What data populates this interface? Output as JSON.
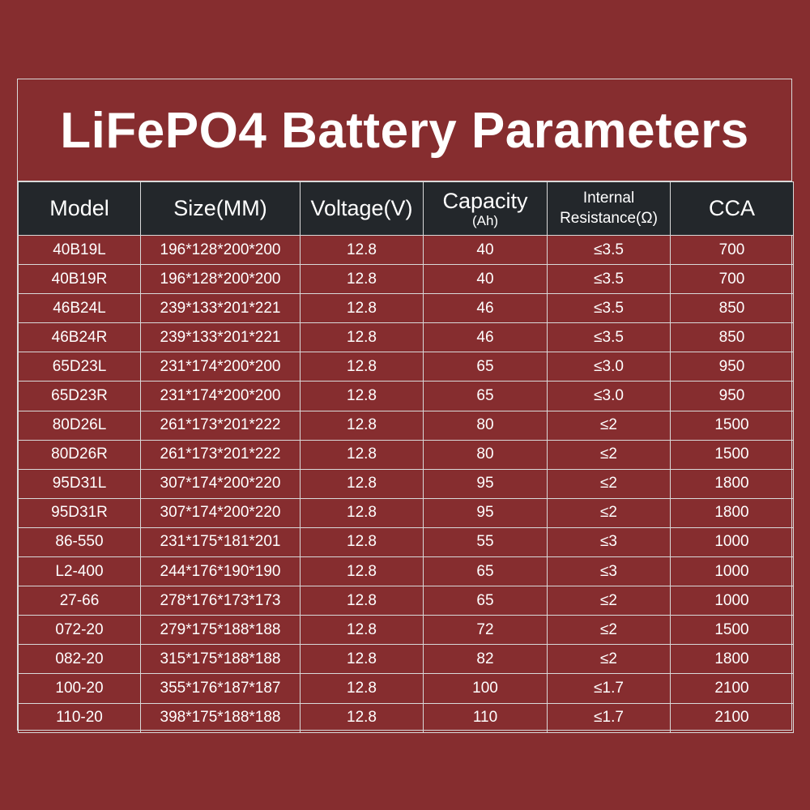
{
  "title": "LiFePO4 Battery Parameters",
  "colors": {
    "background": "#862D2F",
    "header_background": "#23272B",
    "grid_line": "#d9d9d9",
    "text": "#ffffff"
  },
  "table": {
    "headers": {
      "model": "Model",
      "size": "Size(MM)",
      "voltage": "Voltage(V)",
      "capacity": "Capacity",
      "capacity_unit": "(Ah)",
      "internal": "Internal",
      "resistance": "Resistance(Ω)",
      "cca": "CCA"
    },
    "rows": [
      [
        "40B19L",
        "196*128*200*200",
        "12.8",
        "40",
        "≤3.5",
        "700"
      ],
      [
        "40B19R",
        "196*128*200*200",
        "12.8",
        "40",
        "≤3.5",
        "700"
      ],
      [
        "46B24L",
        "239*133*201*221",
        "12.8",
        "46",
        "≤3.5",
        "850"
      ],
      [
        "46B24R",
        "239*133*201*221",
        "12.8",
        "46",
        "≤3.5",
        "850"
      ],
      [
        "65D23L",
        "231*174*200*200",
        "12.8",
        "65",
        "≤3.0",
        "950"
      ],
      [
        "65D23R",
        "231*174*200*200",
        "12.8",
        "65",
        "≤3.0",
        "950"
      ],
      [
        "80D26L",
        "261*173*201*222",
        "12.8",
        "80",
        "≤2",
        "1500"
      ],
      [
        "80D26R",
        "261*173*201*222",
        "12.8",
        "80",
        "≤2",
        "1500"
      ],
      [
        "95D31L",
        "307*174*200*220",
        "12.8",
        "95",
        "≤2",
        "1800"
      ],
      [
        "95D31R",
        "307*174*200*220",
        "12.8",
        "95",
        "≤2",
        "1800"
      ],
      [
        "86-550",
        "231*175*181*201",
        "12.8",
        "55",
        "≤3",
        "1000"
      ],
      [
        "L2-400",
        "244*176*190*190",
        "12.8",
        "65",
        "≤3",
        "1000"
      ],
      [
        "27-66",
        "278*176*173*173",
        "12.8",
        "65",
        "≤2",
        "1000"
      ],
      [
        "072-20",
        "279*175*188*188",
        "12.8",
        "72",
        "≤2",
        "1500"
      ],
      [
        "082-20",
        "315*175*188*188",
        "12.8",
        "82",
        "≤2",
        "1800"
      ],
      [
        "100-20",
        "355*176*187*187",
        "12.8",
        "100",
        "≤1.7",
        "2100"
      ],
      [
        "110-20",
        "398*175*188*188",
        "12.8",
        "110",
        "≤1.7",
        "2100"
      ]
    ]
  }
}
